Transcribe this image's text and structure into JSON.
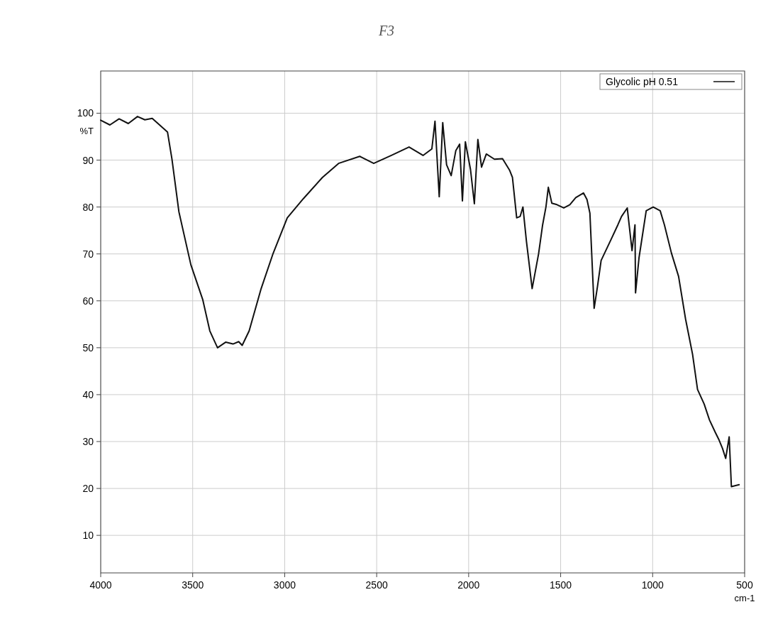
{
  "chart_data": {
    "type": "line",
    "title": "F3",
    "xlabel": "cm-1",
    "ylabel": "%T",
    "xlim": [
      4000,
      500
    ],
    "ylim": [
      2,
      109
    ],
    "xticks": [
      4000,
      3500,
      3000,
      2500,
      2000,
      1500,
      1000,
      500
    ],
    "yticks": [
      10,
      20,
      30,
      40,
      50,
      60,
      70,
      80,
      90,
      100
    ],
    "grid": true,
    "legend": "top right",
    "marker": "none",
    "line_style": "solid",
    "series": [
      {
        "name": "Glycolic pH 0.51",
        "color": "#111111",
        "x": [
          4000,
          3950,
          3900,
          3850,
          3800,
          3760,
          3720,
          3680,
          3637,
          3613,
          3575,
          3510,
          3445,
          3407,
          3365,
          3320,
          3281,
          3250,
          3231,
          3193,
          3128,
          3063,
          2986,
          2898,
          2795,
          2707,
          2592,
          2516,
          2420,
          2324,
          2248,
          2200,
          2183,
          2160,
          2141,
          2120,
          2095,
          2070,
          2049,
          2034,
          2018,
          1990,
          1969,
          1950,
          1930,
          1904,
          1860,
          1816,
          1777,
          1762,
          1739,
          1720,
          1705,
          1686,
          1655,
          1620,
          1598,
          1580,
          1567,
          1548,
          1520,
          1483,
          1450,
          1418,
          1376,
          1357,
          1341,
          1318,
          1300,
          1280,
          1227,
          1189,
          1169,
          1138,
          1112,
          1096,
          1093,
          1074,
          1035,
          997,
          959,
          936,
          898,
          859,
          821,
          783,
          756,
          720,
          691,
          660,
          641,
          620,
          603,
          584,
          572,
          530
        ],
        "values": [
          98.5,
          97.5,
          98.8,
          97.8,
          99.3,
          98.6,
          98.9,
          97.5,
          96,
          90.3,
          79,
          67.7,
          60.2,
          53.6,
          50,
          51.2,
          50.8,
          51.3,
          50.5,
          53.6,
          62.6,
          70.1,
          77.7,
          81.8,
          86.3,
          89.3,
          90.8,
          89.3,
          91,
          92.8,
          91,
          92.4,
          98.3,
          82.2,
          98,
          89,
          86.7,
          92,
          93.4,
          81.3,
          93.9,
          88,
          80.7,
          94.4,
          88.5,
          91.3,
          90.2,
          90.3,
          87.8,
          86.3,
          77.7,
          78,
          80,
          72.7,
          62.6,
          70,
          76.2,
          80,
          84.2,
          80.8,
          80.5,
          79.8,
          80.5,
          82,
          83,
          81.6,
          78.7,
          58.4,
          63,
          68.6,
          73,
          76.2,
          78,
          79.8,
          70.7,
          76.2,
          61.7,
          69.2,
          79.2,
          80,
          79.2,
          76.2,
          70.2,
          65.2,
          56.1,
          48.6,
          41.1,
          38,
          34.6,
          32,
          30.5,
          28.5,
          26.4,
          31,
          20.4,
          20.8
        ]
      }
    ]
  }
}
